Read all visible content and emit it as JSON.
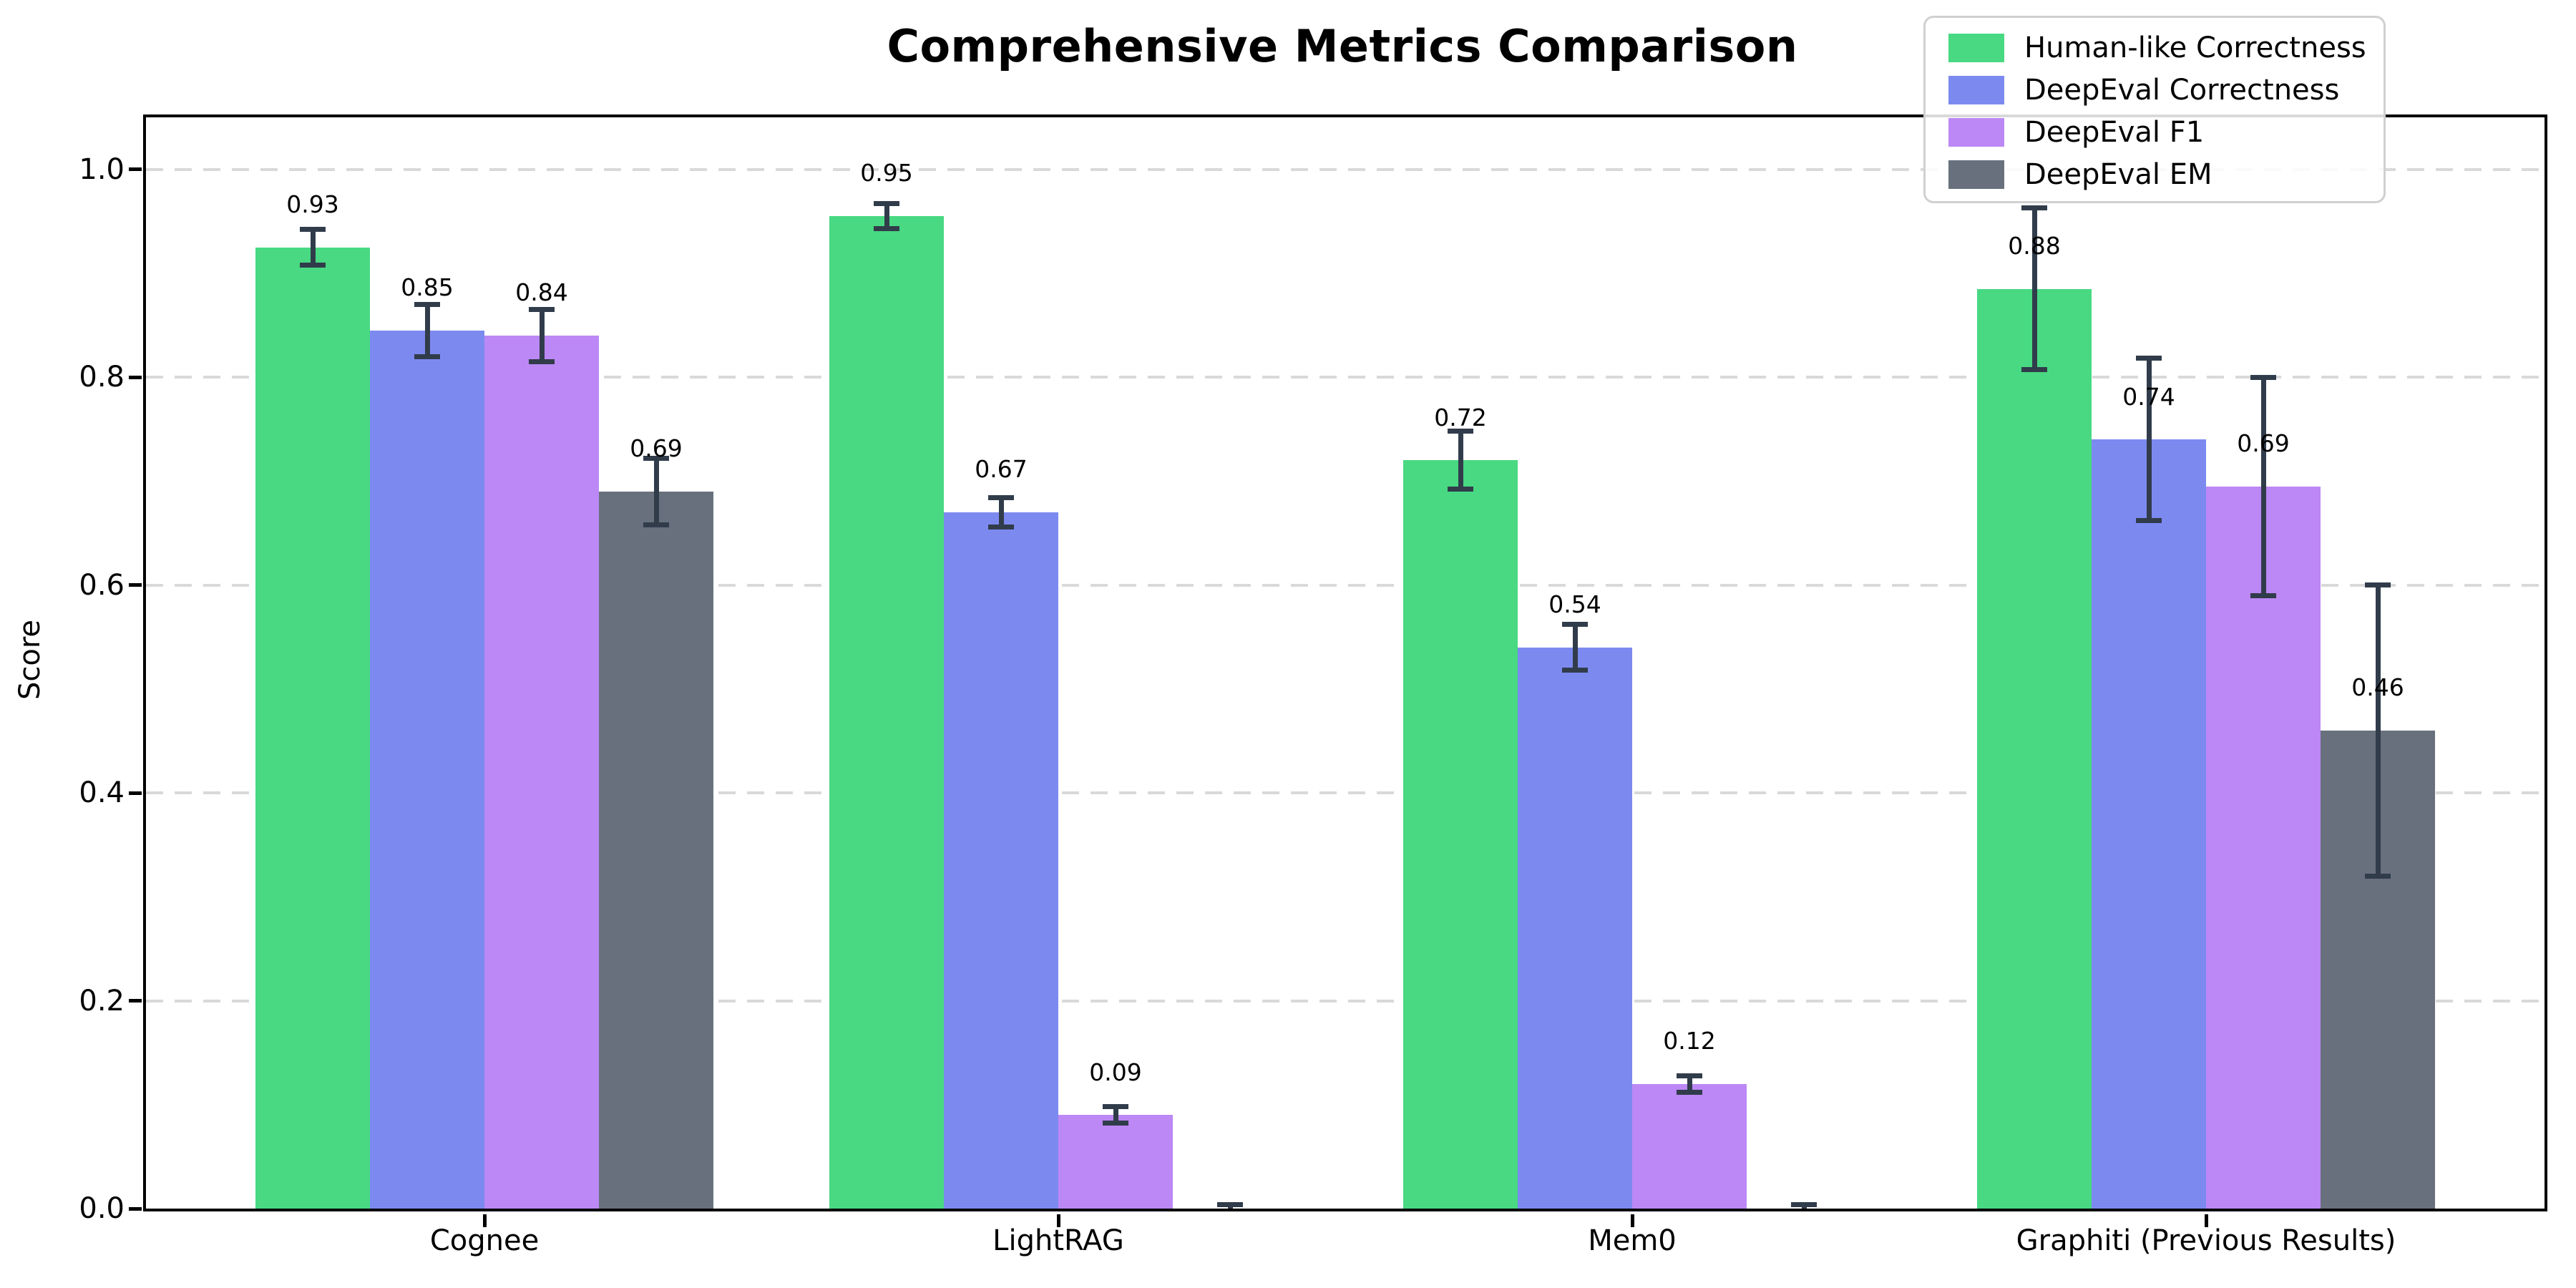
{
  "title": "Comprehensive Metrics Comparison",
  "chart_data": {
    "type": "bar",
    "title": "Comprehensive Metrics Comparison",
    "xlabel": "",
    "ylabel": "Score",
    "categories": [
      "Cognee",
      "LightRAG",
      "Mem0",
      "Graphiti (Previous Results)"
    ],
    "series": [
      {
        "name": "Human-like Correctness",
        "color": "#48d982",
        "values": [
          0.925,
          0.955,
          0.72,
          0.885
        ],
        "errors": [
          0.017,
          0.012,
          0.028,
          0.078
        ],
        "labels": [
          "0.93",
          "0.95",
          "0.72",
          "0.88"
        ]
      },
      {
        "name": "DeepEval Correctness",
        "color": "#7c8af0",
        "values": [
          0.845,
          0.67,
          0.54,
          0.74
        ],
        "errors": [
          0.025,
          0.014,
          0.022,
          0.078
        ],
        "labels": [
          "0.85",
          "0.67",
          "0.54",
          "0.74"
        ]
      },
      {
        "name": "DeepEval F1",
        "color": "#bc88f5",
        "values": [
          0.84,
          0.09,
          0.12,
          0.695
        ],
        "errors": [
          0.025,
          0.008,
          0.008,
          0.105
        ],
        "labels": [
          "0.84",
          "0.09",
          "0.12",
          "0.69"
        ]
      },
      {
        "name": "DeepEval EM",
        "color": "#68707d",
        "values": [
          0.69,
          0.0,
          0.0,
          0.46
        ],
        "errors": [
          0.032,
          0.004,
          0.004,
          0.14
        ],
        "labels": [
          "0.69",
          "",
          "",
          "0.46"
        ]
      }
    ],
    "yticks": [
      "0.0",
      "0.2",
      "0.4",
      "0.6",
      "0.8",
      "1.0"
    ],
    "ylim": [
      0,
      1.05
    ],
    "grid": "horizontal dashed",
    "grid_color": "#d9d9d9",
    "error_bar_color": "#313c4b",
    "legend_position": "upper right"
  }
}
